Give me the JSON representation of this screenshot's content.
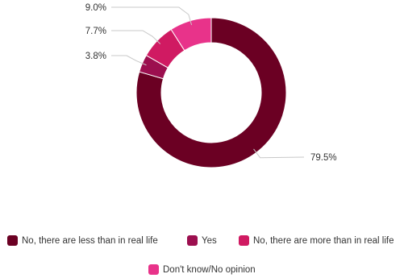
{
  "chart_data": {
    "type": "pie",
    "donut": true,
    "title": "",
    "categories": [
      "No, there are less than in real life",
      "Yes",
      "No, there are more than in real life",
      "Don't know/No opinion"
    ],
    "values": [
      79.5,
      3.8,
      7.7,
      9.0
    ],
    "labels": [
      "79.5%",
      "3.8%",
      "7.7%",
      "9.0%"
    ],
    "colors": [
      "#6b0023",
      "#9c0f4f",
      "#d01a62",
      "#e8338a"
    ],
    "legend_position": "bottom"
  }
}
